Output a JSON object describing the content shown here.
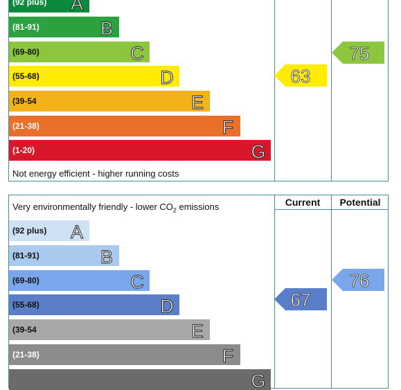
{
  "energy": {
    "bands": [
      {
        "range": "(92 plus)",
        "letter": "A",
        "color": "#0a8a3c",
        "text_color": "#ffffff"
      },
      {
        "range": "(81-91)",
        "letter": "B",
        "color": "#2ba140",
        "text_color": "#ffffff"
      },
      {
        "range": "(69-80)",
        "letter": "C",
        "color": "#8cc63f",
        "text_color": "#111111"
      },
      {
        "range": "(55-68)",
        "letter": "D",
        "color": "#ffec00",
        "text_color": "#111111"
      },
      {
        "range": "(39-54",
        "letter": "E",
        "color": "#f2b31a",
        "text_color": "#111111"
      },
      {
        "range": "(21-38)",
        "letter": "F",
        "color": "#e8702a",
        "text_color": "#ffffff"
      },
      {
        "range": "(1-20)",
        "letter": "G",
        "color": "#d8182a",
        "text_color": "#ffffff"
      }
    ],
    "footer": "Not energy efficient - higher running costs",
    "current": {
      "value": "63",
      "color": "#ffec00"
    },
    "potential": {
      "value": "75",
      "color": "#8cc63f"
    }
  },
  "environment": {
    "header_current": "Current",
    "header_potential": "Potential",
    "caption_prefix": "Very environmentally friendly - lower CO",
    "caption_sub": "2",
    "caption_suffix": " emissions",
    "bands": [
      {
        "range": "(92 plus)",
        "letter": "A",
        "color": "#cfe2f5",
        "text_color": "#111111"
      },
      {
        "range": "(81-91)",
        "letter": "B",
        "color": "#a9c9ee",
        "text_color": "#111111"
      },
      {
        "range": "(69-80)",
        "letter": "C",
        "color": "#7aa6ec",
        "text_color": "#111111"
      },
      {
        "range": "(55-68)",
        "letter": "D",
        "color": "#5a7fc8",
        "text_color": "#111111"
      },
      {
        "range": "(39-54",
        "letter": "E",
        "color": "#a8a8a8",
        "text_color": "#111111"
      },
      {
        "range": "(21-38)",
        "letter": "F",
        "color": "#8c8c8c",
        "text_color": "#ffffff"
      },
      {
        "range": "",
        "letter": "G",
        "color": "#6b6b6b",
        "text_color": "#ffffff"
      }
    ],
    "current": {
      "value": "67",
      "color": "#5a7fc8"
    },
    "potential": {
      "value": "76",
      "color": "#7aa6ec"
    }
  }
}
